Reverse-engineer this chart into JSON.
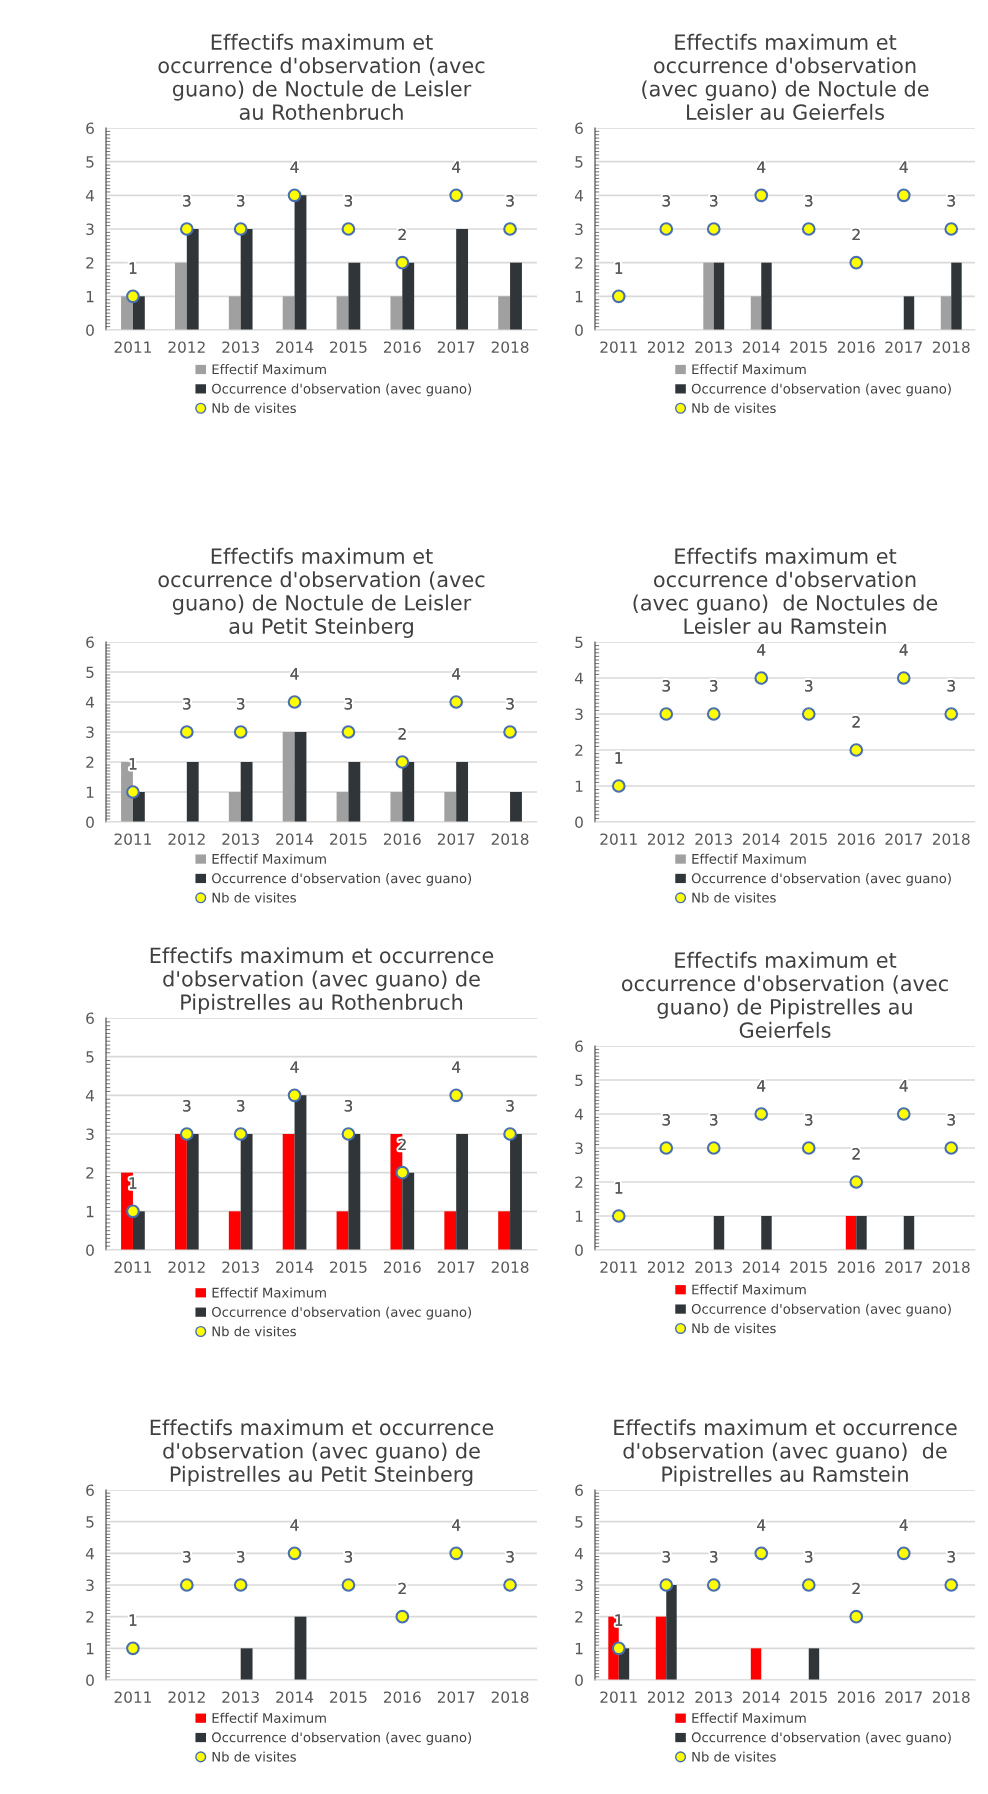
{
  "chart_data": [
    {
      "type": "bar",
      "title": "Effectifs maximum et\noccurrence d'observation (avec\nguano) de Noctule de Leisler\nau Rothenbruch",
      "categories": [
        "2011",
        "2012",
        "2013",
        "2014",
        "2015",
        "2016",
        "2017",
        "2018"
      ],
      "ylim": [
        0,
        6
      ],
      "yticks": [
        0,
        1,
        2,
        3,
        4,
        5,
        6
      ],
      "grid": "y",
      "legend": "bottom",
      "marker": "circle",
      "series": [
        {
          "name": "Effectif Maximum",
          "color": "#a0a0a0",
          "values": [
            1,
            2,
            1,
            1,
            1,
            1,
            null,
            1
          ]
        },
        {
          "name": "Occurrence d'observation (avec guano)",
          "color": "#2f3538",
          "values": [
            1,
            3,
            3,
            4,
            2,
            2,
            3,
            2
          ]
        },
        {
          "name": "Nb de visites",
          "type": "scatter",
          "color": "#ffff00",
          "values": [
            1,
            3,
            3,
            4,
            3,
            2,
            4,
            3
          ],
          "value_labels": [
            "1",
            "3",
            "3",
            "4",
            "3",
            "2",
            "4",
            "3"
          ]
        }
      ]
    },
    {
      "type": "bar",
      "title": "Effectifs maximum et\noccurrence d'observation\n(avec guano) de Noctule de\nLeisler au Geierfels",
      "categories": [
        "2011",
        "2012",
        "2013",
        "2014",
        "2015",
        "2016",
        "2017",
        "2018"
      ],
      "ylim": [
        0,
        6
      ],
      "yticks": [
        0,
        1,
        2,
        3,
        4,
        5,
        6
      ],
      "grid": "y",
      "legend": "bottom",
      "marker": "circle",
      "series": [
        {
          "name": "Effectif Maximum",
          "color": "#a0a0a0",
          "values": [
            null,
            null,
            2,
            1,
            null,
            null,
            null,
            1
          ]
        },
        {
          "name": "Occurrence d'observation (avec guano)",
          "color": "#2f3538",
          "values": [
            null,
            null,
            2,
            2,
            null,
            null,
            1,
            2
          ]
        },
        {
          "name": "Nb de visites",
          "type": "scatter",
          "color": "#ffff00",
          "values": [
            1,
            3,
            3,
            4,
            3,
            2,
            4,
            3
          ],
          "value_labels": [
            "1",
            "3",
            "3",
            "4",
            "3",
            "2",
            "4",
            "3"
          ]
        }
      ]
    },
    {
      "type": "bar",
      "title": "Effectifs maximum et\noccurrence d'observation (avec\nguano) de Noctule de Leisler\nau Petit Steinberg",
      "categories": [
        "2011",
        "2012",
        "2013",
        "2014",
        "2015",
        "2016",
        "2017",
        "2018"
      ],
      "ylim": [
        0,
        6
      ],
      "yticks": [
        0,
        1,
        2,
        3,
        4,
        5,
        6
      ],
      "grid": "y",
      "legend": "bottom",
      "marker": "circle",
      "series": [
        {
          "name": "Effectif Maximum",
          "color": "#a0a0a0",
          "values": [
            2,
            null,
            1,
            3,
            1,
            1,
            1,
            null
          ]
        },
        {
          "name": "Occurrence d'observation (avec guano)",
          "color": "#2f3538",
          "values": [
            1,
            2,
            2,
            3,
            2,
            2,
            2,
            1
          ]
        },
        {
          "name": "Nb de visites",
          "type": "scatter",
          "color": "#ffff00",
          "values": [
            1,
            3,
            3,
            4,
            3,
            2,
            4,
            3
          ],
          "value_labels": [
            "1",
            "3",
            "3",
            "4",
            "3",
            "2",
            "4",
            "3"
          ]
        }
      ]
    },
    {
      "type": "bar",
      "title": "Effectifs maximum et\noccurrence d'observation\n(avec guano)  de Noctules de\nLeisler au Ramstein",
      "categories": [
        "2011",
        "2012",
        "2013",
        "2014",
        "2015",
        "2016",
        "2017",
        "2018"
      ],
      "ylim": [
        0,
        5
      ],
      "yticks": [
        0,
        1,
        2,
        3,
        4,
        5
      ],
      "grid": "y",
      "legend": "bottom",
      "marker": "circle",
      "series": [
        {
          "name": "Effectif Maximum",
          "color": "#a0a0a0",
          "values": [
            null,
            null,
            null,
            null,
            null,
            null,
            null,
            null
          ]
        },
        {
          "name": "Occurrence d'observation (avec guano)",
          "color": "#2f3538",
          "values": [
            null,
            null,
            null,
            null,
            null,
            null,
            null,
            null
          ]
        },
        {
          "name": "Nb de visites",
          "type": "scatter",
          "color": "#ffff00",
          "values": [
            1,
            3,
            3,
            4,
            3,
            2,
            4,
            3
          ],
          "value_labels": [
            "1",
            "3",
            "3",
            "4",
            "3",
            "2",
            "4",
            "3"
          ]
        }
      ]
    },
    {
      "type": "bar",
      "title": "Effectifs maximum et occurrence\nd'observation (avec guano) de\nPipistrelles au Rothenbruch",
      "categories": [
        "2011",
        "2012",
        "2013",
        "2014",
        "2015",
        "2016",
        "2017",
        "2018"
      ],
      "ylim": [
        0,
        6
      ],
      "yticks": [
        0,
        1,
        2,
        3,
        4,
        5,
        6
      ],
      "grid": "y",
      "legend": "bottom",
      "marker": "circle",
      "series": [
        {
          "name": "Effectif Maximum",
          "color": "#ff0000",
          "values": [
            2,
            3,
            1,
            3,
            1,
            3,
            1,
            1
          ]
        },
        {
          "name": "Occurrence d'observation (avec guano)",
          "color": "#2f3538",
          "values": [
            1,
            3,
            3,
            4,
            3,
            2,
            3,
            3
          ]
        },
        {
          "name": "Nb de visites",
          "type": "scatter",
          "color": "#ffff00",
          "values": [
            1,
            3,
            3,
            4,
            3,
            2,
            4,
            3
          ],
          "value_labels": [
            "1",
            "3",
            "3",
            "4",
            "3",
            "2",
            "4",
            "3"
          ]
        }
      ]
    },
    {
      "type": "bar",
      "title": "Effectifs maximum et\noccurrence d'observation (avec\nguano) de Pipistrelles au\nGeierfels",
      "categories": [
        "2011",
        "2012",
        "2013",
        "2014",
        "2015",
        "2016",
        "2017",
        "2018"
      ],
      "ylim": [
        0,
        6
      ],
      "yticks": [
        0,
        1,
        2,
        3,
        4,
        5,
        6
      ],
      "grid": "y",
      "legend": "bottom",
      "marker": "circle",
      "series": [
        {
          "name": "Effectif Maximum",
          "color": "#ff0000",
          "values": [
            null,
            null,
            null,
            null,
            null,
            1,
            null,
            null
          ]
        },
        {
          "name": "Occurrence d'observation (avec guano)",
          "color": "#2f3538",
          "values": [
            null,
            null,
            1,
            1,
            null,
            1,
            1,
            null
          ]
        },
        {
          "name": "Nb de visites",
          "type": "scatter",
          "color": "#ffff00",
          "values": [
            1,
            3,
            3,
            4,
            3,
            2,
            4,
            3
          ],
          "value_labels": [
            "1",
            "3",
            "3",
            "4",
            "3",
            "2",
            "4",
            "3"
          ]
        }
      ]
    },
    {
      "type": "bar",
      "title": "Effectifs maximum et occurrence\nd'observation (avec guano) de\nPipistrelles au Petit Steinberg",
      "categories": [
        "2011",
        "2012",
        "2013",
        "2014",
        "2015",
        "2016",
        "2017",
        "2018"
      ],
      "ylim": [
        0,
        6
      ],
      "yticks": [
        0,
        1,
        2,
        3,
        4,
        5,
        6
      ],
      "grid": "y",
      "legend": "bottom",
      "marker": "circle",
      "series": [
        {
          "name": "Effectif Maximum",
          "color": "#ff0000",
          "values": [
            null,
            null,
            null,
            null,
            null,
            null,
            null,
            null
          ]
        },
        {
          "name": "Occurrence d'observation (avec guano)",
          "color": "#2f3538",
          "values": [
            null,
            null,
            1,
            2,
            null,
            null,
            null,
            null
          ]
        },
        {
          "name": "Nb de visites",
          "type": "scatter",
          "color": "#ffff00",
          "values": [
            1,
            3,
            3,
            4,
            3,
            2,
            4,
            3
          ],
          "value_labels": [
            "1",
            "3",
            "3",
            "4",
            "3",
            "2",
            "4",
            "3"
          ]
        }
      ]
    },
    {
      "type": "bar",
      "title": "Effectifs maximum et occurrence\nd'observation (avec guano)  de\nPipistrelles au Ramstein",
      "categories": [
        "2011",
        "2012",
        "2013",
        "2014",
        "2015",
        "2016",
        "2017",
        "2018"
      ],
      "ylim": [
        0,
        6
      ],
      "yticks": [
        0,
        1,
        2,
        3,
        4,
        5,
        6
      ],
      "grid": "y",
      "legend": "bottom",
      "marker": "circle",
      "series": [
        {
          "name": "Effectif Maximum",
          "color": "#ff0000",
          "values": [
            2,
            2,
            null,
            1,
            null,
            null,
            null,
            null
          ]
        },
        {
          "name": "Occurrence d'observation (avec guano)",
          "color": "#2f3538",
          "values": [
            1,
            3,
            null,
            null,
            1,
            null,
            null,
            null
          ]
        },
        {
          "name": "Nb de visites",
          "type": "scatter",
          "color": "#ffff00",
          "values": [
            1,
            3,
            3,
            4,
            3,
            2,
            4,
            3
          ],
          "value_labels": [
            "1",
            "3",
            "3",
            "4",
            "3",
            "2",
            "4",
            "3"
          ]
        }
      ]
    }
  ]
}
